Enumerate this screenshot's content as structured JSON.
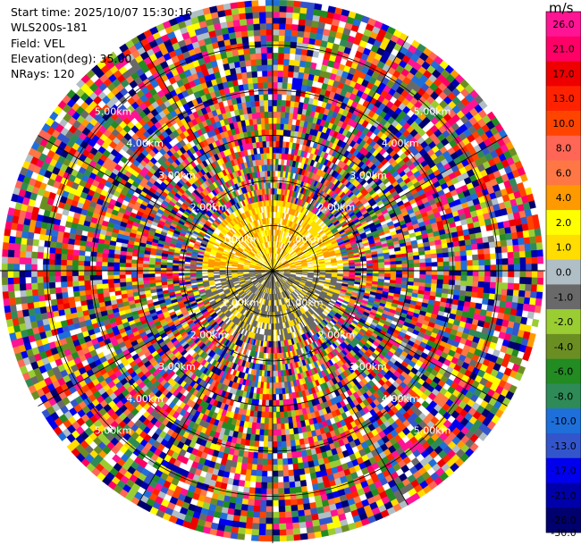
{
  "header": {
    "start_time": "Start time: 2025/10/07 15:30:16",
    "instrument": "WLS200s-181",
    "field": "Field: VEL",
    "elevation": "Elevation(deg): 35.00",
    "nrays": "NRays: 120"
  },
  "colorbar": {
    "unit": "m/s",
    "ticks": [
      "26.0",
      "21.0",
      "17.0",
      "13.0",
      "10.0",
      "8.0",
      "6.0",
      "4.0",
      "2.0",
      "1.0",
      "0.0",
      "-1.0",
      "-2.0",
      "-4.0",
      "-6.0",
      "-8.0",
      "-10.0",
      "-13.0",
      "-17.0",
      "-21.0",
      "-26.0",
      "-30.0"
    ],
    "colors": [
      "#ff1493",
      "#ff0066",
      "#ee0000",
      "#ff2200",
      "#ff4400",
      "#ff6655",
      "#ff7744",
      "#ff9900",
      "#ffff00",
      "#ffdd00",
      "#b0bec5",
      "#696969",
      "#9acd32",
      "#6b8e23",
      "#228b22",
      "#2e8b57",
      "#1e6fd9",
      "#3355cc",
      "#0000ee",
      "#0000aa",
      "#00006e"
    ]
  },
  "chart_data": {
    "type": "heatmap",
    "projection": "polar-ppi",
    "field": "VEL",
    "units": "m/s",
    "nrays": 120,
    "elevation_deg": 35.0,
    "max_range_km": 6.0,
    "range_rings_km": [
      1.0,
      2.0,
      3.0,
      4.0,
      5.0
    ],
    "range_labels": [
      "1.00km",
      "2.00km",
      "3.00km",
      "4.00km",
      "5.00km"
    ],
    "label_directions": [
      "northeast",
      "southeast",
      "southwest",
      "northwest"
    ],
    "inner_zone": {
      "range_km": [
        0.0,
        1.6
      ],
      "north_values_ms": [
        1.0,
        4.0
      ],
      "south_values_ms": [
        -2.0,
        -1.0
      ],
      "fill": "0.0"
    },
    "outer_zone": {
      "range_km": [
        1.6,
        6.0
      ],
      "values": "mixed"
    },
    "vmin": -30.0,
    "vmax": 26.0
  }
}
